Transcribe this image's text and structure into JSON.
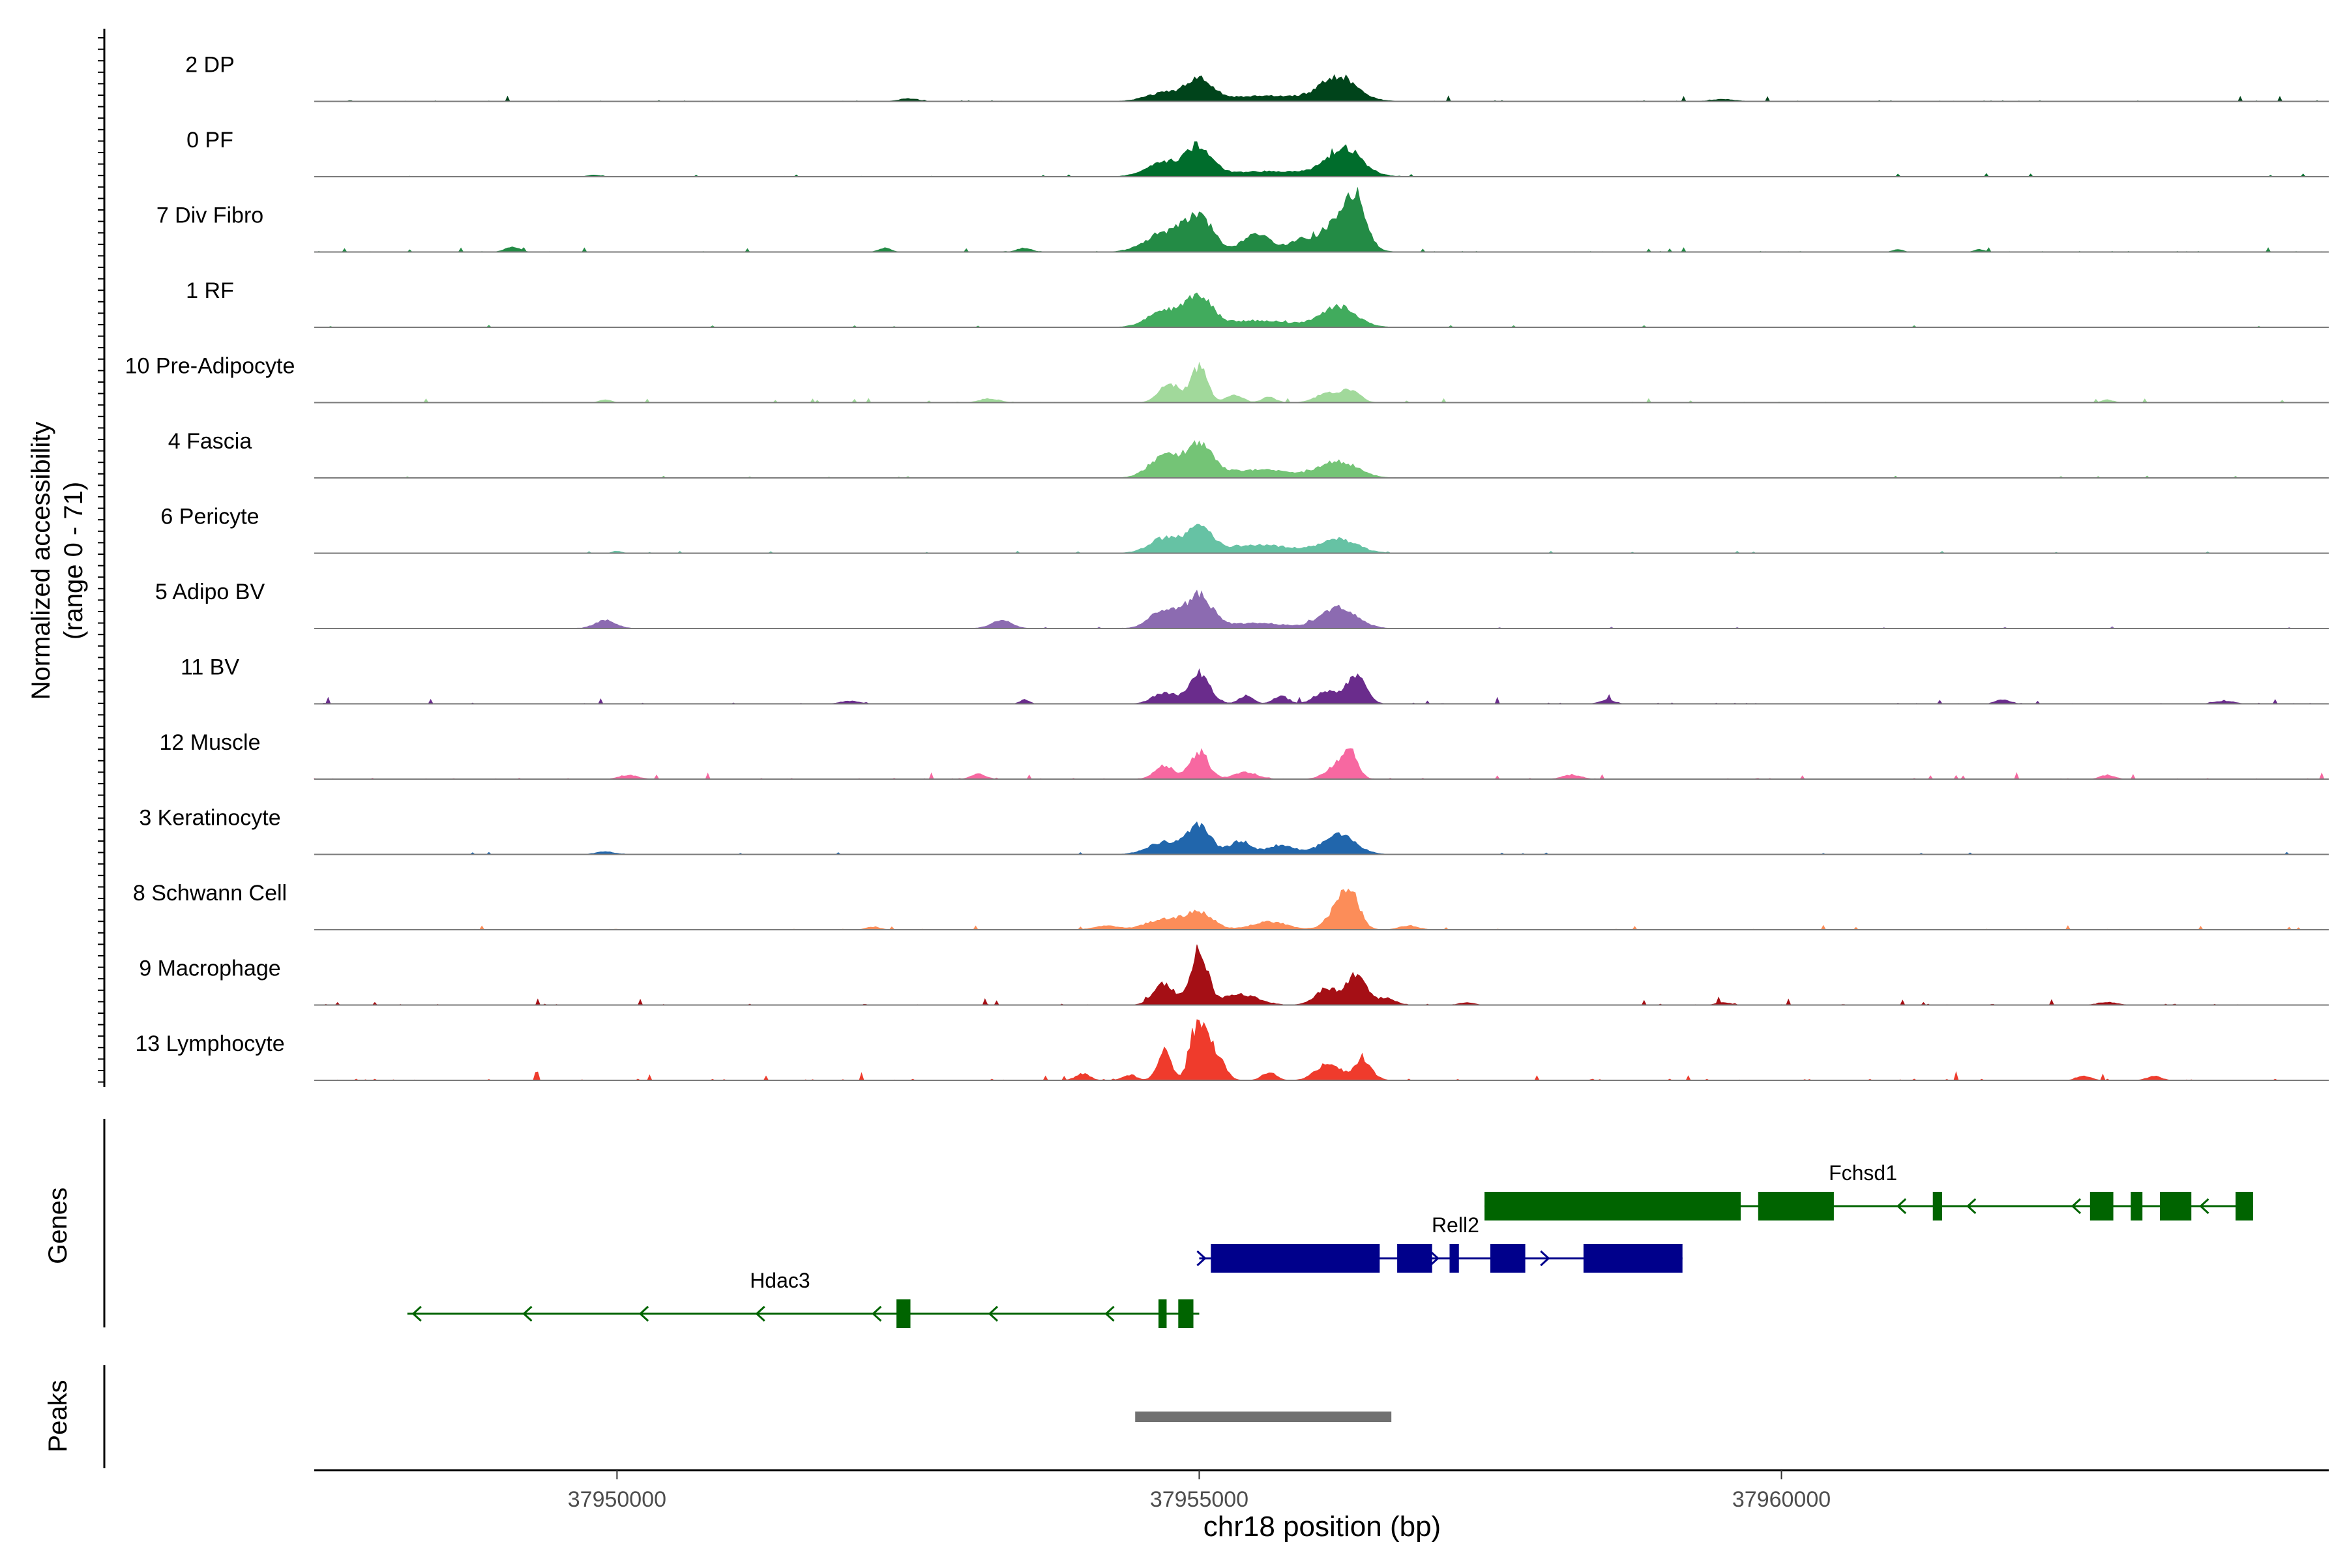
{
  "chart_data": {
    "type": "area",
    "title": "",
    "ylabel": "Normalized accessibility",
    "ylabel_range": "(range 0 - 71)",
    "xlabel": "chr18 position (bp)",
    "xlim": [
      37947400,
      37964700
    ],
    "ylim": [
      0,
      71
    ],
    "x_ticks": [
      {
        "value": 37950000,
        "label": "37950000"
      },
      {
        "value": 37955000,
        "label": "37955000"
      },
      {
        "value": 37960000,
        "label": "37960000"
      }
    ],
    "series": [
      {
        "name": "2 DP",
        "color": "#00441b",
        "noise": 2.5,
        "peaks": [
          [
            37954700,
            6,
            150
          ],
          [
            37955000,
            15,
            110
          ],
          [
            37955600,
            4,
            450
          ],
          [
            37956200,
            17,
            150
          ],
          [
            37952500,
            2,
            80
          ],
          [
            37959500,
            1.5,
            100
          ]
        ]
      },
      {
        "name": "0 PF",
        "color": "#006d2c",
        "noise": 1.5,
        "peaks": [
          [
            37954700,
            10,
            150
          ],
          [
            37955000,
            21,
            110
          ],
          [
            37955600,
            4,
            400
          ],
          [
            37956250,
            20,
            150
          ],
          [
            37949800,
            1,
            60
          ]
        ]
      },
      {
        "name": "7 Div Fibro",
        "color": "#238b45",
        "noise": 2.0,
        "peaks": [
          [
            37954700,
            14,
            160
          ],
          [
            37955000,
            26,
            120
          ],
          [
            37955500,
            14,
            120
          ],
          [
            37955850,
            7,
            90
          ],
          [
            37956200,
            23,
            160
          ],
          [
            37956350,
            29,
            80
          ],
          [
            37949100,
            4,
            60
          ],
          [
            37952300,
            3,
            50
          ],
          [
            37953500,
            3,
            60
          ],
          [
            37961000,
            2,
            40
          ],
          [
            37961700,
            2,
            40
          ]
        ]
      },
      {
        "name": "1 RF",
        "color": "#41ab5d",
        "noise": 1.0,
        "peaks": [
          [
            37954700,
            12,
            140
          ],
          [
            37955000,
            22,
            110
          ],
          [
            37955500,
            5,
            300
          ],
          [
            37956200,
            15,
            150
          ]
        ]
      },
      {
        "name": "10 Pre-Adipocyte",
        "color": "#a1d99b",
        "noise": 2.0,
        "peaks": [
          [
            37954750,
            14,
            90
          ],
          [
            37955000,
            26,
            70
          ],
          [
            37955300,
            6,
            70
          ],
          [
            37955600,
            4,
            60
          ],
          [
            37956100,
            7,
            100
          ],
          [
            37956300,
            9,
            80
          ],
          [
            37953200,
            3,
            80
          ],
          [
            37949900,
            2,
            50
          ],
          [
            37962800,
            2,
            50
          ]
        ]
      },
      {
        "name": "4 Fascia",
        "color": "#74c476",
        "noise": 1.0,
        "peaks": [
          [
            37954700,
            16,
            130
          ],
          [
            37955000,
            24,
            110
          ],
          [
            37955500,
            6,
            300
          ],
          [
            37956200,
            12,
            160
          ]
        ]
      },
      {
        "name": "6 Pericyte",
        "color": "#66c2a4",
        "noise": 1.0,
        "peaks": [
          [
            37954700,
            11,
            130
          ],
          [
            37955000,
            21,
            100
          ],
          [
            37955500,
            6,
            300
          ],
          [
            37956200,
            10,
            160
          ],
          [
            37950000,
            1.5,
            40
          ]
        ]
      },
      {
        "name": "5 Adipo BV",
        "color": "#8c6bb1",
        "noise": 1.0,
        "peaks": [
          [
            37954700,
            14,
            120
          ],
          [
            37955000,
            24,
            110
          ],
          [
            37955500,
            4,
            250
          ],
          [
            37956200,
            16,
            150
          ],
          [
            37949900,
            6,
            90
          ],
          [
            37953300,
            6,
            90
          ]
        ]
      },
      {
        "name": "11 BV",
        "color": "#6a2c8c",
        "noise": 3.0,
        "peaks": [
          [
            37954700,
            8,
            100
          ],
          [
            37955000,
            23,
            90
          ],
          [
            37955400,
            6,
            60
          ],
          [
            37955700,
            6,
            60
          ],
          [
            37956100,
            9,
            100
          ],
          [
            37956350,
            21,
            80
          ],
          [
            37953500,
            3,
            40
          ],
          [
            37952000,
            2,
            80
          ],
          [
            37958500,
            3,
            60
          ],
          [
            37961900,
            3,
            60
          ],
          [
            37963800,
            2,
            80
          ]
        ]
      },
      {
        "name": "12 Muscle",
        "color": "#f768a1",
        "noise": 3.0,
        "peaks": [
          [
            37954700,
            10,
            80
          ],
          [
            37955000,
            19,
            80
          ],
          [
            37955400,
            5,
            100
          ],
          [
            37956200,
            11,
            100
          ],
          [
            37956300,
            16,
            60
          ],
          [
            37953100,
            4,
            60
          ],
          [
            37950100,
            3,
            80
          ],
          [
            37958200,
            3,
            80
          ],
          [
            37962800,
            3,
            60
          ]
        ]
      },
      {
        "name": "3 Keratinocyte",
        "color": "#2166ac",
        "noise": 1.0,
        "peaks": [
          [
            37954700,
            9,
            140
          ],
          [
            37955000,
            21,
            100
          ],
          [
            37955350,
            10,
            90
          ],
          [
            37955700,
            7,
            120
          ],
          [
            37956200,
            15,
            140
          ],
          [
            37949900,
            2,
            80
          ]
        ]
      },
      {
        "name": "8 Schwann Cell",
        "color": "#fc8d59",
        "noise": 2.0,
        "peaks": [
          [
            37954700,
            8,
            150
          ],
          [
            37955000,
            12,
            120
          ],
          [
            37955600,
            6,
            150
          ],
          [
            37956200,
            14,
            100
          ],
          [
            37956300,
            22,
            80
          ],
          [
            37954200,
            3,
            100
          ],
          [
            37952200,
            2,
            60
          ],
          [
            37956800,
            3,
            80
          ]
        ]
      },
      {
        "name": "9 Macrophage",
        "color": "#a50f15",
        "noise": 3.0,
        "peaks": [
          [
            37954700,
            16,
            90
          ],
          [
            37955000,
            42,
            70
          ],
          [
            37955350,
            8,
            150
          ],
          [
            37956100,
            12,
            100
          ],
          [
            37956350,
            22,
            80
          ],
          [
            37956600,
            5,
            80
          ],
          [
            37957300,
            2,
            60
          ],
          [
            37959500,
            2,
            60
          ],
          [
            37962800,
            2,
            80
          ]
        ]
      },
      {
        "name": "13 Lymphocyte",
        "color": "#ef3b2c",
        "noise": 4.0,
        "peaks": [
          [
            37954700,
            22,
            60
          ],
          [
            37955000,
            42,
            70
          ],
          [
            37955150,
            18,
            70
          ],
          [
            37955600,
            6,
            60
          ],
          [
            37956100,
            12,
            100
          ],
          [
            37956400,
            14,
            80
          ],
          [
            37954000,
            5,
            60
          ],
          [
            37954400,
            4,
            60
          ],
          [
            37962600,
            3,
            60
          ],
          [
            37963200,
            3,
            60
          ]
        ]
      }
    ],
    "genes": [
      {
        "name": "Fchsd1",
        "strand": "-",
        "color": "#006400",
        "row": 0,
        "start": 37957450,
        "end": 37964050,
        "label_at": 37960700,
        "exons": [
          [
            37957450,
            37959650
          ],
          [
            37959800,
            37960450
          ],
          [
            37961300,
            37961380
          ],
          [
            37962650,
            37962850
          ],
          [
            37963000,
            37963100
          ],
          [
            37963250,
            37963520
          ],
          [
            37963900,
            37964050
          ]
        ],
        "arrows": [
          37961000,
          37961600,
          37962500,
          37963600
        ]
      },
      {
        "name": "Rell2",
        "strand": "+",
        "color": "#00008b",
        "row": 1,
        "start": 37955000,
        "end": 37959150,
        "label_at": 37957200,
        "exons": [
          [
            37955100,
            37956550
          ],
          [
            37956700,
            37957000
          ],
          [
            37957150,
            37957230
          ],
          [
            37957500,
            37957800
          ],
          [
            37958300,
            37959150
          ]
        ],
        "arrows": [
          37955050,
          37957050,
          37958000
        ]
      },
      {
        "name": "Hdac3",
        "strand": "-",
        "color": "#006400",
        "row": 2,
        "start": 37948200,
        "end": 37955000,
        "label_at": 37951400,
        "exons": [
          [
            37952400,
            37952520
          ],
          [
            37954650,
            37954720
          ],
          [
            37954820,
            37954950
          ]
        ],
        "arrows": [
          37948250,
          37949200,
          37950200,
          37951200,
          37952200,
          37953200,
          37954200
        ]
      }
    ],
    "peaks": [
      {
        "start": 37954450,
        "end": 37956650,
        "color": "#707070"
      }
    ],
    "panel_labels": {
      "genes": "Genes",
      "peaks": "Peaks"
    }
  }
}
